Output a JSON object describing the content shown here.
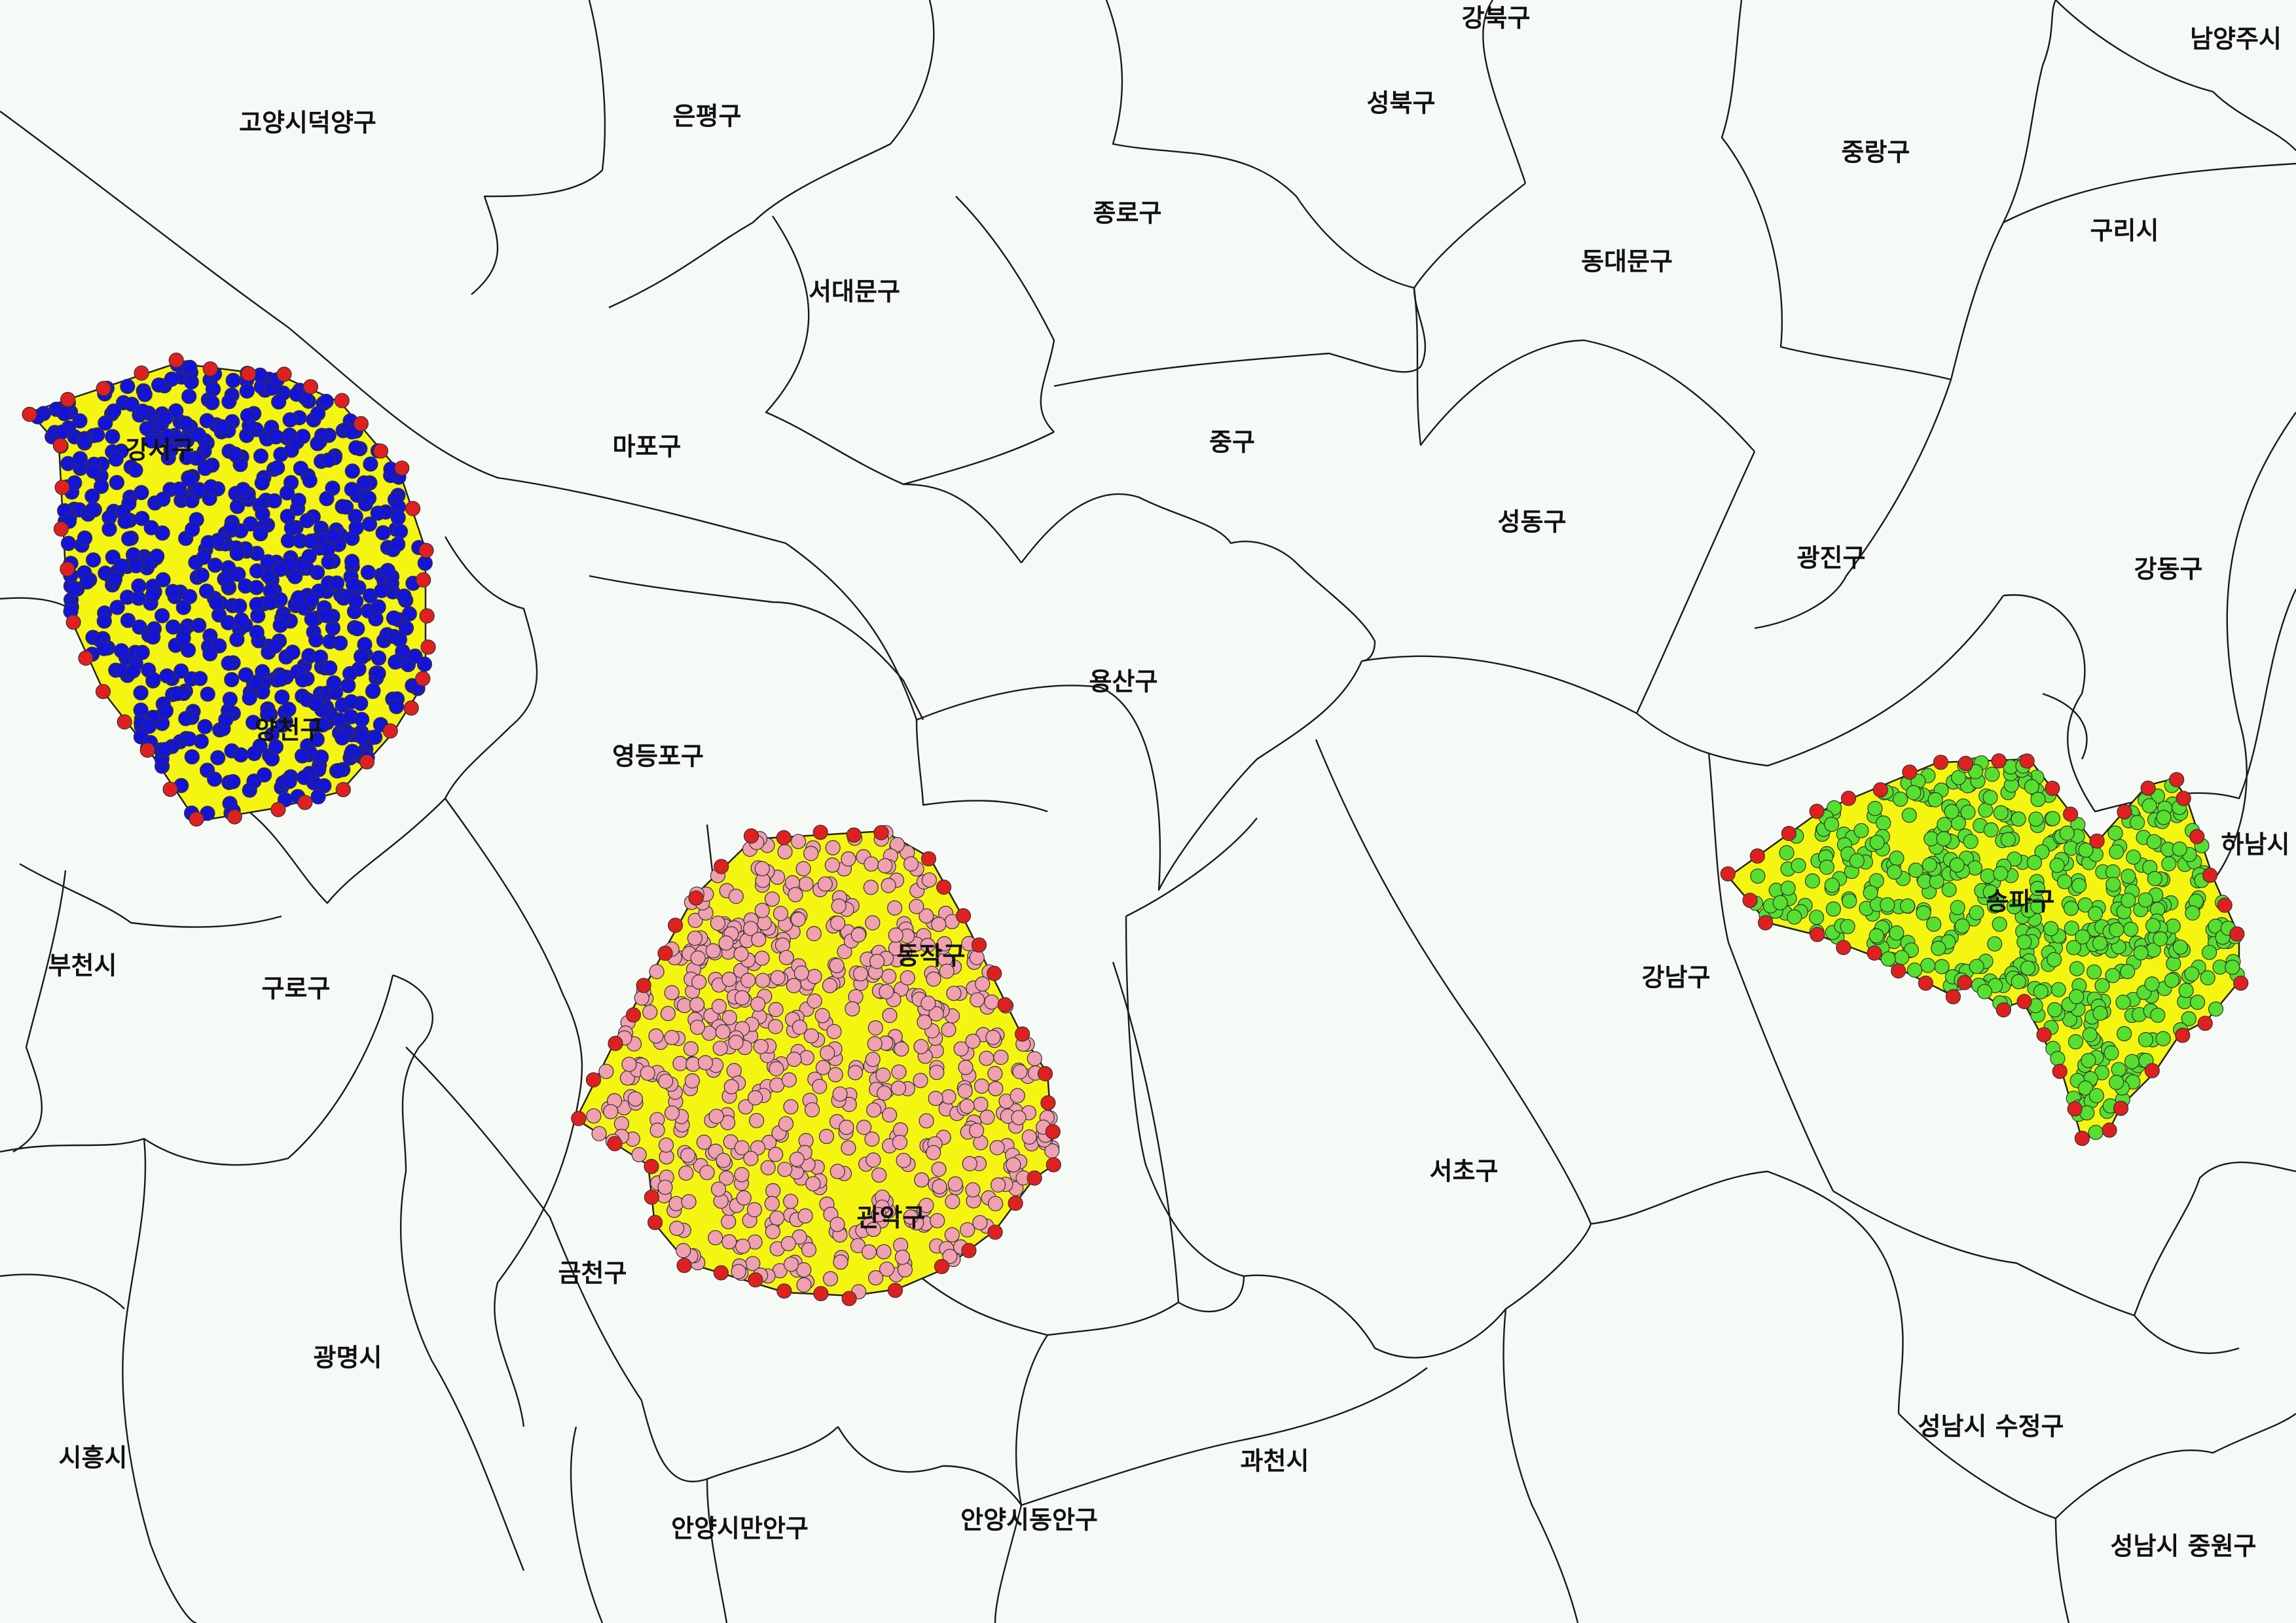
{
  "map": {
    "district_labels": [
      "고양시덕양구",
      "은평구",
      "강북구",
      "성북구",
      "남양주시",
      "중랑구",
      "종로구",
      "동대문구",
      "구리시",
      "서대문구",
      "마포구",
      "중구",
      "성동구",
      "광진구",
      "강동구",
      "강서구",
      "양천구",
      "용산구",
      "영등포구",
      "하남시",
      "송파구",
      "동작구",
      "부천시",
      "구로구",
      "강남구",
      "서초구",
      "관악구",
      "금천구",
      "광명시",
      "시흥시",
      "과천시",
      "성남시 수정구",
      "안양시만안구",
      "안양시동안구",
      "성남시 중원구"
    ],
    "highlighted_districts": [
      "강서구",
      "동작구",
      "송파구"
    ],
    "colors": {
      "background": "#f6faf6",
      "hull_fill": "#f5f512",
      "hull_edge_points": "#e02020",
      "gangseo_points": "#1414d8",
      "dongjak_points": "#f0a0b0",
      "songpa_points": "#55e030"
    }
  }
}
